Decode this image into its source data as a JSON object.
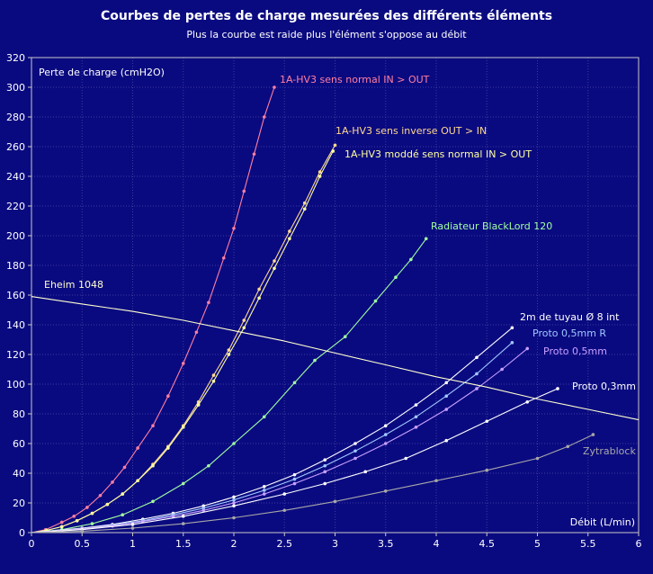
{
  "chart_data": {
    "type": "scatter",
    "title": "Courbes de pertes de charge mesurées des différents éléments",
    "subtitle": "Plus la courbe est raide plus l'élément s'oppose au débit",
    "xlabel": "Débit (L/min)",
    "ylabel": "Perte de charge (cmH2O)",
    "xlim": [
      0,
      6
    ],
    "ylim": [
      0,
      320
    ],
    "xticks": [
      0,
      0.5,
      1,
      1.5,
      2,
      2.5,
      3,
      3.5,
      4,
      4.5,
      5,
      5.5,
      6
    ],
    "yticks": [
      0,
      20,
      40,
      60,
      80,
      100,
      120,
      140,
      160,
      180,
      200,
      220,
      240,
      260,
      280,
      300,
      320
    ],
    "xtick_labels": [
      "0",
      "0.5",
      "1",
      "1.5",
      "2",
      "2.5",
      "3",
      "3.5",
      "4",
      "4.5",
      "5",
      "5.5",
      "6"
    ],
    "ytick_labels": [
      "0",
      "20",
      "40",
      "60",
      "80",
      "100",
      "120",
      "140",
      "160",
      "180",
      "200",
      "220",
      "240",
      "260",
      "280",
      "300",
      "320"
    ],
    "grid": true,
    "colors": {
      "background": "#0a0a80",
      "grid": "#3a3aa0",
      "axis": "#c8c8c8",
      "text": "#ffffff"
    },
    "series": [
      {
        "name": "1A-HV3 sens normal IN > OUT",
        "color": "#ff7fa0",
        "markers": true,
        "x": [
          0,
          0.14,
          0.3,
          0.42,
          0.55,
          0.68,
          0.8,
          0.92,
          1.05,
          1.2,
          1.35,
          1.5,
          1.63,
          1.75,
          1.9,
          2.0,
          2.1,
          2.2,
          2.3,
          2.4
        ],
        "y": [
          0,
          2,
          7,
          11,
          17,
          25,
          34,
          44,
          57,
          72,
          92,
          114,
          135,
          155,
          185,
          205,
          230,
          255,
          280,
          300
        ]
      },
      {
        "name": "1A-HV3 sens inverse OUT > IN",
        "color": "#ffd890",
        "markers": true,
        "x": [
          0,
          0.15,
          0.3,
          0.45,
          0.6,
          0.75,
          0.9,
          1.05,
          1.2,
          1.35,
          1.5,
          1.65,
          1.8,
          1.95,
          2.1,
          2.25,
          2.4,
          2.55,
          2.7,
          2.85,
          3.0
        ],
        "y": [
          0,
          1.5,
          4,
          8,
          13,
          19,
          26,
          35,
          46,
          58,
          72,
          88,
          106,
          123,
          143,
          164,
          183,
          203,
          222,
          243,
          261
        ]
      },
      {
        "name": "1A-HV3 moddé sens normal IN > OUT",
        "color": "#ffffa0",
        "markers": true,
        "x": [
          0,
          0.15,
          0.3,
          0.45,
          0.6,
          0.75,
          0.9,
          1.05,
          1.2,
          1.35,
          1.5,
          1.65,
          1.8,
          1.95,
          2.1,
          2.25,
          2.4,
          2.55,
          2.7,
          2.85,
          2.98
        ],
        "y": [
          0,
          1.5,
          4,
          8,
          13,
          19,
          26,
          35,
          45,
          57,
          71,
          86,
          102,
          120,
          138,
          158,
          178,
          198,
          218,
          240,
          257
        ]
      },
      {
        "name": "Radiateur BlackLord 120",
        "color": "#a0ffa0",
        "markers": true,
        "x": [
          0,
          0.3,
          0.6,
          0.9,
          1.2,
          1.5,
          1.75,
          2.0,
          2.3,
          2.6,
          2.8,
          3.1,
          3.4,
          3.6,
          3.75,
          3.9
        ],
        "y": [
          0,
          2,
          6,
          12,
          21,
          33,
          45,
          60,
          78,
          101,
          116,
          132,
          156,
          172,
          184,
          198
        ]
      },
      {
        "name": "2m de tuyau Ø 8 int",
        "color": "#ffffff",
        "markers": true,
        "x": [
          0,
          0.5,
          0.8,
          1.1,
          1.4,
          1.7,
          2.0,
          2.3,
          2.6,
          2.9,
          3.2,
          3.5,
          3.8,
          4.1,
          4.4,
          4.75
        ],
        "y": [
          0,
          3,
          5.5,
          9,
          13,
          18,
          24,
          31,
          39,
          49,
          60,
          72,
          86,
          101,
          118,
          138
        ]
      },
      {
        "name": "Proto 0,5mm R",
        "color": "#a0c8ff",
        "markers": true,
        "x": [
          0,
          0.5,
          0.8,
          1.1,
          1.4,
          1.7,
          2.0,
          2.3,
          2.6,
          2.9,
          3.2,
          3.5,
          3.8,
          4.1,
          4.4,
          4.75
        ],
        "y": [
          0,
          2.5,
          5,
          8,
          12,
          16.5,
          22,
          28.5,
          36,
          45,
          55,
          66,
          78,
          92,
          107,
          128
        ]
      },
      {
        "name": "Proto 0,5mm",
        "color": "#c8a0ff",
        "markers": true,
        "x": [
          0,
          0.5,
          0.8,
          1.1,
          1.4,
          1.7,
          2.0,
          2.3,
          2.6,
          2.9,
          3.2,
          3.5,
          3.8,
          4.1,
          4.4,
          4.65,
          4.9
        ],
        "y": [
          0,
          2.5,
          4.5,
          7.5,
          11,
          15,
          20,
          26,
          33,
          41,
          50,
          60,
          71,
          83,
          97,
          110,
          124
        ]
      },
      {
        "name": "Proto 0,3mm",
        "color": "#ffffff",
        "markers": true,
        "x": [
          0,
          0.5,
          1.0,
          1.5,
          2.0,
          2.5,
          2.9,
          3.3,
          3.7,
          4.1,
          4.5,
          4.9,
          5.2
        ],
        "y": [
          0,
          2,
          5.5,
          11,
          18,
          26,
          33,
          41,
          50,
          62,
          75,
          88,
          97
        ]
      },
      {
        "name": "Zytrablock",
        "color": "#a8a8a8",
        "markers": true,
        "x": [
          0,
          0.5,
          1.0,
          1.5,
          2.0,
          2.5,
          3.0,
          3.5,
          4.0,
          4.5,
          5.0,
          5.3,
          5.55
        ],
        "y": [
          0,
          1,
          3,
          6,
          10,
          15,
          21,
          28,
          35,
          42,
          50,
          58,
          66
        ]
      },
      {
        "name": "Eheim 1048",
        "color": "#ffffd0",
        "markers": false,
        "x": [
          0,
          0.5,
          1.0,
          1.5,
          2.0,
          2.5,
          3.0,
          3.5,
          4.0,
          4.5,
          5.0,
          5.5,
          6.0
        ],
        "y": [
          159,
          154,
          149,
          143,
          136,
          129,
          121,
          113,
          105,
          98,
          90,
          83,
          76
        ]
      }
    ]
  }
}
